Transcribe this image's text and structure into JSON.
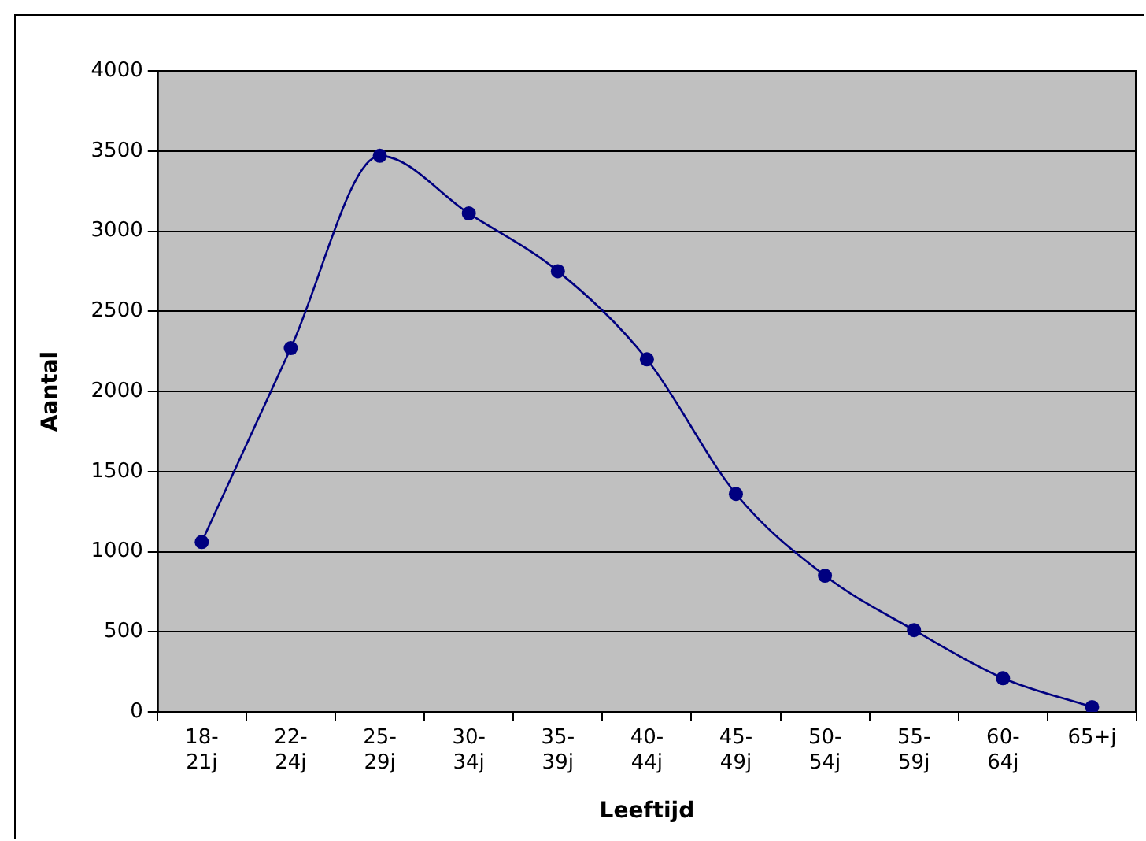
{
  "chart_data": {
    "type": "line",
    "xlabel": "Leeftijd",
    "ylabel": "Aantal",
    "categories": [
      "18-21j",
      "22-24j",
      "25-29j",
      "30-34j",
      "35-39j",
      "40-44j",
      "45-49j",
      "50-54j",
      "55-59j",
      "60-64j",
      "65+j"
    ],
    "series": [
      {
        "color": "#000080",
        "values": [
          1060,
          2270,
          3470,
          3110,
          2750,
          2200,
          1360,
          850,
          510,
          210,
          30
        ]
      }
    ],
    "ylim": [
      0,
      4000
    ],
    "yticks": [
      0,
      500,
      1000,
      1500,
      2000,
      2500,
      3000,
      3500,
      4000
    ],
    "grid": "y",
    "legend": false,
    "marker": "circle",
    "line_style": "solid"
  }
}
